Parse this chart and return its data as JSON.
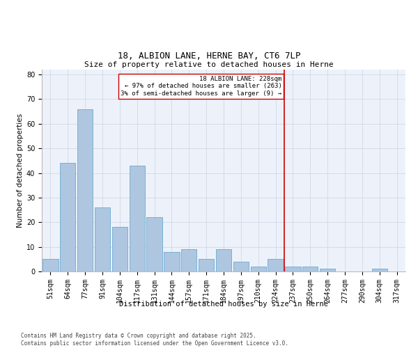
{
  "title1": "18, ALBION LANE, HERNE BAY, CT6 7LP",
  "title2": "Size of property relative to detached houses in Herne",
  "xlabel": "Distribution of detached houses by size in Herne",
  "ylabel": "Number of detached properties",
  "bin_labels": [
    "51sqm",
    "64sqm",
    "77sqm",
    "91sqm",
    "104sqm",
    "117sqm",
    "131sqm",
    "144sqm",
    "157sqm",
    "171sqm",
    "184sqm",
    "197sqm",
    "210sqm",
    "224sqm",
    "237sqm",
    "250sqm",
    "264sqm",
    "277sqm",
    "290sqm",
    "304sqm",
    "317sqm"
  ],
  "counts": [
    5,
    44,
    66,
    26,
    18,
    43,
    22,
    8,
    9,
    5,
    9,
    4,
    2,
    5,
    2,
    2,
    1,
    0,
    0,
    1,
    0
  ],
  "bar_color": "#aec6e0",
  "bar_edge_color": "#6aaad4",
  "property_line_index": 13.5,
  "annotation_text": "18 ALBION LANE: 228sqm\n← 97% of detached houses are smaller (263)\n3% of semi-detached houses are larger (9) →",
  "vline_color": "#cc0000",
  "ylim": [
    0,
    82
  ],
  "yticks": [
    0,
    10,
    20,
    30,
    40,
    50,
    60,
    70,
    80
  ],
  "grid_color": "#d0d8e8",
  "background_color": "#edf2fa",
  "footer_text": "Contains HM Land Registry data © Crown copyright and database right 2025.\nContains public sector information licensed under the Open Government Licence v3.0.",
  "annotation_box_color": "#ffffff",
  "annotation_box_edge_color": "#cc0000",
  "title_fontsize": 9,
  "axis_label_fontsize": 7.5,
  "tick_fontsize": 7,
  "annotation_fontsize": 6.5,
  "footer_fontsize": 5.5
}
